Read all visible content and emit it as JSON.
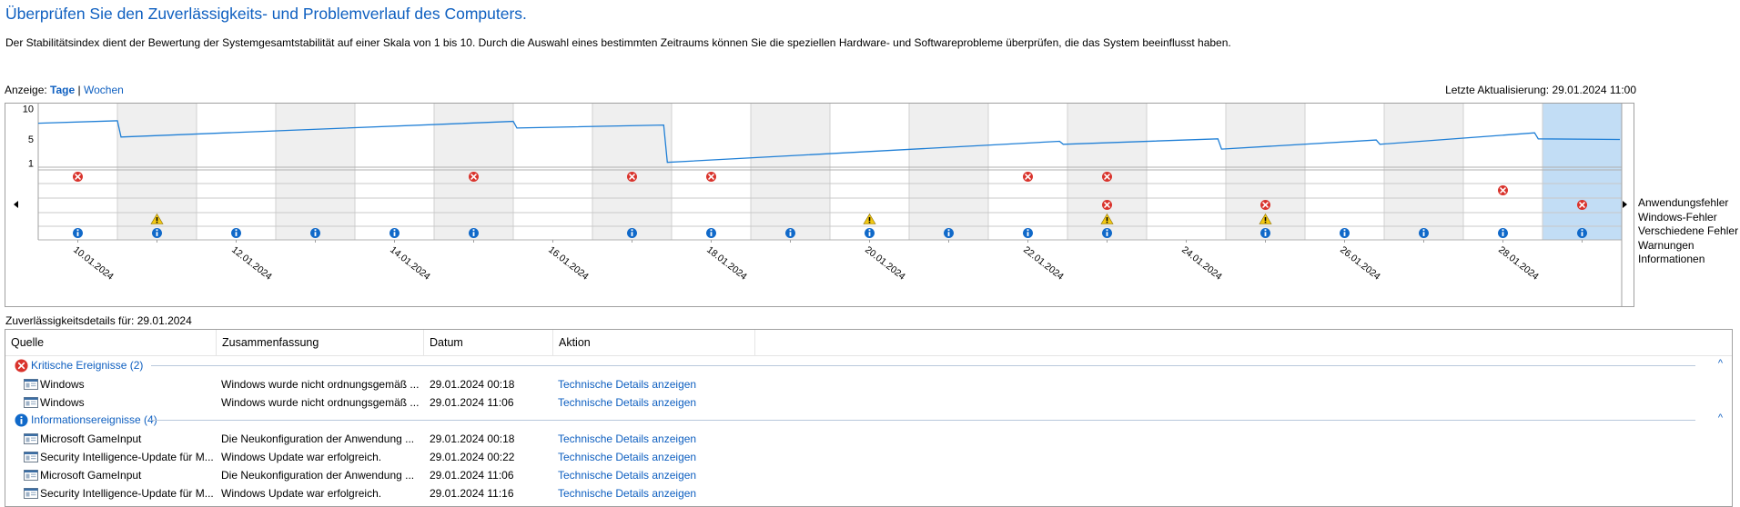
{
  "header": {
    "title": "Überprüfen Sie den Zuverlässigkeits- und Problemverlauf des Computers.",
    "description": "Der Stabilitätsindex dient der Bewertung der Systemgesamtstabilität auf einer Skala von 1 bis 10. Durch die Auswahl eines bestimmten Zeitraums können Sie die speziellen Hardware- und Softwareprobleme überprüfen, die das System beeinflusst haben."
  },
  "view": {
    "label": "Anzeige:",
    "days": "Tage",
    "separator": "|",
    "weeks": "Wochen",
    "selected": "Tage"
  },
  "last_update": "Letzte Aktualisierung: 29.01.2024 11:00",
  "chart": {
    "y_ticks": [
      "10",
      "5",
      "1"
    ],
    "date_labels": [
      "10.01.2024",
      "12.01.2024",
      "14.01.2024",
      "16.01.2024",
      "18.01.2024",
      "20.01.2024",
      "22.01.2024",
      "24.01.2024",
      "26.01.2024",
      "28.01.2024"
    ],
    "column_count": 20,
    "selected_column": 19,
    "stability": [
      7.6,
      5.3,
      5.6,
      5.9,
      6.2,
      6.5,
      6.8,
      7.1,
      7.2,
      1.1,
      1.6,
      2.1,
      2.7,
      3.2,
      3.6,
      4.0,
      4.4,
      4.7,
      5.1,
      4.9
    ],
    "stability_drops": [
      {
        "x": 1.0,
        "from": 8.0,
        "to": 5.3
      },
      {
        "x": 6.0,
        "from": 7.9,
        "to": 6.8
      },
      {
        "x": 7.9,
        "from": 7.3,
        "to": 1.1
      },
      {
        "x": 12.9,
        "from": 4.6,
        "to": 4.1
      },
      {
        "x": 14.9,
        "from": 5.0,
        "to": 3.3
      },
      {
        "x": 16.9,
        "from": 4.8,
        "to": 4.1
      },
      {
        "x": 18.9,
        "from": 6.0,
        "to": 5.0
      }
    ],
    "events": {
      "anwendungsfehler": [
        0,
        5,
        7,
        8,
        12,
        13
      ],
      "windows_fehler": [
        18
      ],
      "verschiedene_fehler": [
        13,
        15,
        19
      ],
      "warnungen": [
        1,
        10,
        13,
        15
      ],
      "informationen": [
        0,
        1,
        2,
        3,
        4,
        5,
        7,
        8,
        9,
        10,
        11,
        12,
        13,
        15,
        16,
        17,
        18,
        19
      ]
    },
    "colors": {
      "line": "#1f7fd6",
      "selected_column": "#c2ddf5",
      "shaded_column": "#efefef",
      "error": "#d9332c",
      "warning": "#f2c811",
      "info": "#1069c9"
    }
  },
  "legend": [
    "Anwendungsfehler",
    "Windows-Fehler",
    "Verschiedene Fehler",
    "Warnungen",
    "Informationen"
  ],
  "details_label": "Zuverlässigkeitsdetails für: 29.01.2024",
  "table": {
    "columns": [
      "Quelle",
      "Zusammenfassung",
      "Datum",
      "Aktion"
    ],
    "groups": [
      {
        "title": "Kritische Ereignisse (2)",
        "icon": "error-icon",
        "rows": [
          {
            "source": "Windows",
            "summary": "Windows wurde nicht ordnungsgemäß ...",
            "date": "29.01.2024 00:18",
            "action": "Technische Details anzeigen"
          },
          {
            "source": "Windows",
            "summary": "Windows wurde nicht ordnungsgemäß ...",
            "date": "29.01.2024 11:06",
            "action": "Technische Details anzeigen"
          }
        ]
      },
      {
        "title": "Informationsereignisse (4)",
        "icon": "info-icon",
        "rows": [
          {
            "source": "Microsoft GameInput",
            "summary": "Die Neukonfiguration der Anwendung ...",
            "date": "29.01.2024 00:18",
            "action": "Technische Details anzeigen"
          },
          {
            "source": "Security Intelligence-Update für M...",
            "summary": "Windows Update war erfolgreich.",
            "date": "29.01.2024 00:22",
            "action": "Technische Details anzeigen"
          },
          {
            "source": "Microsoft GameInput",
            "summary": "Die Neukonfiguration der Anwendung ...",
            "date": "29.01.2024 11:06",
            "action": "Technische Details anzeigen"
          },
          {
            "source": "Security Intelligence-Update für M...",
            "summary": "Windows Update war erfolgreich.",
            "date": "29.01.2024 11:16",
            "action": "Technische Details anzeigen"
          }
        ]
      }
    ]
  }
}
